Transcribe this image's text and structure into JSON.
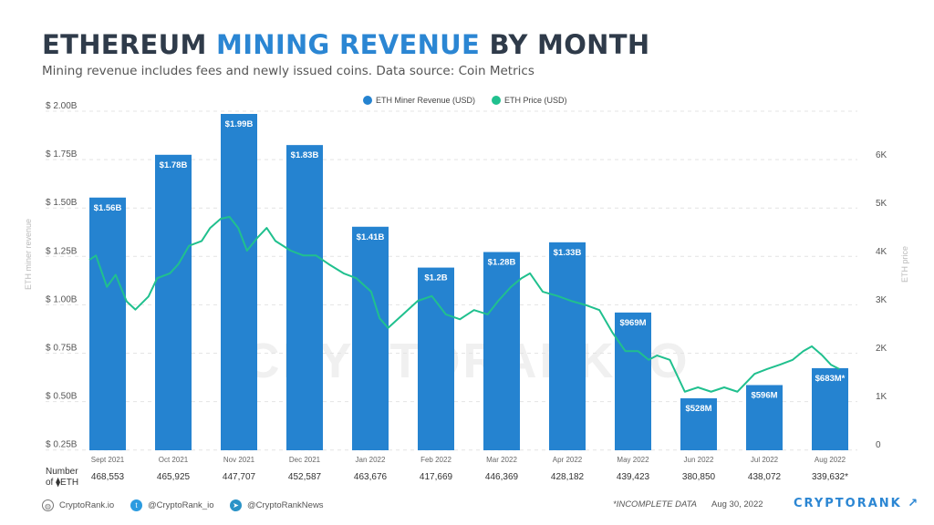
{
  "title": {
    "part1": "ETHEREUM ",
    "part2": "MINING REVENUE",
    "part3": " BY MONTH"
  },
  "subtitle": "Mining revenue includes fees and newly issued coins. Data source: Coin Metrics",
  "watermark": "CRYPTORANK.IO",
  "colors": {
    "bar": "#2583d0",
    "line": "#20c08e",
    "title_accent": "#2b86d3",
    "title": "#2f3b4a"
  },
  "chart_data": {
    "type": "bar+line",
    "categories": [
      "Sept 2021",
      "Oct 2021",
      "Nov 2021",
      "Dec 2021",
      "Jan 2022",
      "Feb 2022",
      "Mar 2022",
      "Apr 2022",
      "May 2022",
      "Jun 2022",
      "Jul 2022",
      "Aug 2022"
    ],
    "ylabel_left": "ETH miner revenue",
    "ylabel_right": "ETH price",
    "yticks_left": [
      "$ 2.00B",
      "$ 1.75B",
      "$ 1.50B",
      "$ 1.25B",
      "$ 1.00B",
      "$ 0.75B",
      "$ 0.50B",
      "$ 0.25B"
    ],
    "yticks_right": [
      "6K",
      "5K",
      "4K",
      "3K",
      "2K",
      "1K",
      "0"
    ],
    "ylim_left_billion": [
      0.25,
      2.0
    ],
    "ylim_right": [
      0,
      6000
    ],
    "grid": "dashed horizontal",
    "legend": {
      "position": "top-center",
      "items": [
        "ETH Miner Revenue (USD)",
        "ETH Price (USD)"
      ]
    },
    "series": [
      {
        "name": "ETH Miner Revenue (USD)",
        "type": "bar",
        "values_billion": [
          1.56,
          1.78,
          1.99,
          1.83,
          1.41,
          1.2,
          1.28,
          1.33,
          0.969,
          0.528,
          0.596,
          0.683
        ],
        "labels": [
          "$1.56B",
          "$1.78B",
          "$1.99B",
          "$1.83B",
          "$1.41B",
          "$1.2B",
          "$1.28B",
          "$1.33B",
          "$969M",
          "$528M",
          "$596M",
          "$683M*"
        ]
      },
      {
        "name": "ETH Price (USD)",
        "type": "line",
        "points": [
          [
            "2021-09-01",
            3810
          ],
          [
            "2021-09-04",
            3900
          ],
          [
            "2021-09-09",
            3250
          ],
          [
            "2021-09-13",
            3500
          ],
          [
            "2021-09-18",
            2950
          ],
          [
            "2021-09-22",
            2780
          ],
          [
            "2021-09-28",
            3050
          ],
          [
            "2021-10-02",
            3430
          ],
          [
            "2021-10-08",
            3530
          ],
          [
            "2021-10-12",
            3720
          ],
          [
            "2021-10-17",
            4100
          ],
          [
            "2021-10-23",
            4200
          ],
          [
            "2021-10-27",
            4470
          ],
          [
            "2021-11-01",
            4660
          ],
          [
            "2021-11-05",
            4700
          ],
          [
            "2021-11-09",
            4470
          ],
          [
            "2021-11-13",
            4000
          ],
          [
            "2021-11-18",
            4280
          ],
          [
            "2021-11-22",
            4470
          ],
          [
            "2021-11-26",
            4200
          ],
          [
            "2021-12-03",
            4000
          ],
          [
            "2021-12-09",
            3900
          ],
          [
            "2021-12-15",
            3900
          ],
          [
            "2021-12-21",
            3720
          ],
          [
            "2021-12-28",
            3530
          ],
          [
            "2022-01-03",
            3430
          ],
          [
            "2022-01-10",
            3150
          ],
          [
            "2022-01-14",
            2600
          ],
          [
            "2022-01-18",
            2400
          ],
          [
            "2022-01-25",
            2680
          ],
          [
            "2022-02-01",
            2960
          ],
          [
            "2022-02-07",
            3060
          ],
          [
            "2022-02-13",
            2680
          ],
          [
            "2022-02-19",
            2580
          ],
          [
            "2022-02-25",
            2770
          ],
          [
            "2022-03-03",
            2680
          ],
          [
            "2022-03-08",
            2960
          ],
          [
            "2022-03-14",
            3250
          ],
          [
            "2022-03-19",
            3430
          ],
          [
            "2022-03-23",
            3530
          ],
          [
            "2022-03-29",
            3150
          ],
          [
            "2022-04-05",
            3060
          ],
          [
            "2022-04-11",
            2960
          ],
          [
            "2022-04-18",
            2870
          ],
          [
            "2022-04-24",
            2770
          ],
          [
            "2022-04-30",
            2300
          ],
          [
            "2022-05-06",
            1920
          ],
          [
            "2022-05-12",
            1920
          ],
          [
            "2022-05-17",
            1740
          ],
          [
            "2022-05-21",
            1830
          ],
          [
            "2022-05-27",
            1740
          ],
          [
            "2022-06-03",
            1080
          ],
          [
            "2022-06-09",
            1170
          ],
          [
            "2022-06-15",
            1080
          ],
          [
            "2022-06-21",
            1170
          ],
          [
            "2022-06-27",
            1080
          ],
          [
            "2022-07-05",
            1450
          ],
          [
            "2022-07-11",
            1550
          ],
          [
            "2022-07-17",
            1640
          ],
          [
            "2022-07-23",
            1740
          ],
          [
            "2022-07-28",
            1920
          ],
          [
            "2022-08-01",
            2020
          ],
          [
            "2022-08-06",
            1830
          ],
          [
            "2022-08-10",
            1640
          ],
          [
            "2022-08-14",
            1550
          ]
        ]
      }
    ],
    "eth_count_label": {
      "line1": "Number",
      "line2": "of ⧫ETH"
    },
    "eth_counts": [
      "468,553",
      "465,925",
      "447,707",
      "452,587",
      "463,676",
      "417,669",
      "446,369",
      "428,182",
      "439,423",
      "380,850",
      "438,072",
      "339,632*"
    ]
  },
  "footer": {
    "website": "CryptoRank.io",
    "twitter": "@CryptoRank_io",
    "telegram": "@CryptoRankNews",
    "note": "*INCOMPLETE DATA",
    "date": "Aug 30, 2022",
    "brand": "CRYPTORANK ↗"
  }
}
